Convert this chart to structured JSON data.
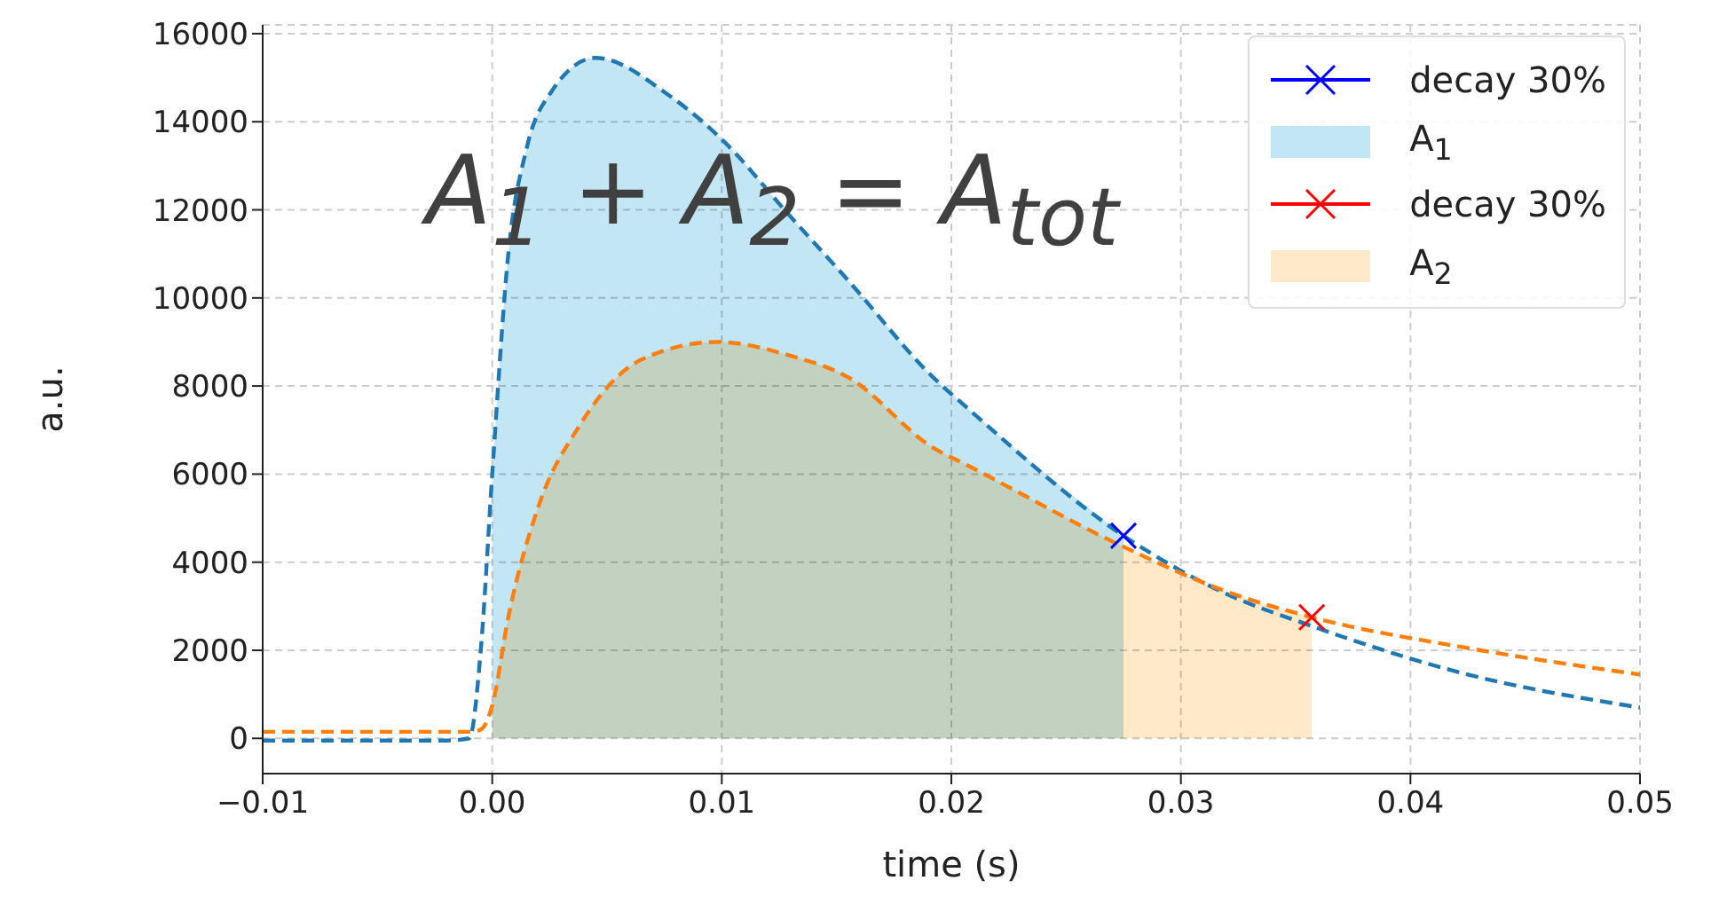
{
  "chart_data": {
    "type": "line",
    "xlabel": "time (s)",
    "ylabel": "a.u.",
    "annotations": [
      "A$_{1}$ + A$_{2}$ = A$_{tot}$"
    ],
    "xlim": [
      -0.01,
      0.05
    ],
    "xticks": [
      {
        "value": -0.01,
        "label": "−0.01"
      },
      {
        "value": 0,
        "label": "0.00"
      },
      0.01,
      0.02,
      0.03,
      0.04,
      0.05
    ],
    "ylim": [
      -800,
      16200
    ],
    "yticks": [
      0,
      2000,
      4000,
      6000,
      8000,
      10000,
      12000,
      14000,
      16000
    ],
    "grid": true,
    "legend": "top right",
    "series": [
      {
        "color": "#1f77b4",
        "line_style": "dashed",
        "marker": "none",
        "x": [
          -0.01,
          -0.002,
          -0.001,
          -0.0005,
          0,
          0.0007,
          0.0015,
          0.0026,
          0.0045,
          0.0077,
          0.01,
          0.0129,
          0.0155,
          0.0192,
          0.0207,
          0.0275,
          0.0319,
          0.0357,
          0.0425,
          0.05
        ],
        "values": [
          -50,
          -50,
          0,
          2000,
          6000,
          11000,
          13400,
          14700,
          15450,
          14600,
          13600,
          11900,
          10400,
          8200,
          7500,
          4600,
          3300,
          2550,
          1450,
          700
        ]
      },
      {
        "color": "#ff7f0e",
        "line_style": "dashed",
        "marker": "none",
        "x": [
          -0.01,
          -0.001,
          -0.0005,
          0,
          0.0007,
          0.002,
          0.0038,
          0.0065,
          0.0098,
          0.0129,
          0.0155,
          0.0192,
          0.0207,
          0.0275,
          0.0319,
          0.0357,
          0.0425,
          0.05
        ],
        "values": [
          150,
          150,
          200,
          750,
          2750,
          5250,
          7100,
          8600,
          9000,
          8700,
          8200,
          6600,
          6200,
          4350,
          3350,
          2750,
          2050,
          1450
        ]
      },
      {
        "type": "scatter",
        "name": "decay 30%",
        "color": "#0000ff",
        "marker": "cross",
        "x": [
          0.0275
        ],
        "values": [
          4600
        ]
      },
      {
        "type": "area",
        "name": "A$_{1}$",
        "color": "#c3e6f5",
        "x": [
          0,
          0.0007,
          0.0015,
          0.0026,
          0.0045,
          0.0077,
          0.01,
          0.0129,
          0.0155,
          0.0192,
          0.0207,
          0.0275
        ],
        "values": [
          6000,
          11000,
          13400,
          14700,
          15450,
          14600,
          13600,
          11900,
          10400,
          8200,
          7500,
          4600
        ]
      },
      {
        "type": "scatter",
        "name": "decay 30%",
        "color": "#ff0000",
        "marker": "cross",
        "x": [
          0.0357
        ],
        "values": [
          2750
        ]
      },
      {
        "type": "area",
        "name": "A$_{2}$",
        "color": "#ffe9c8",
        "x": [
          0,
          0.0007,
          0.002,
          0.0038,
          0.0065,
          0.0098,
          0.0129,
          0.0155,
          0.0192,
          0.0207,
          0.0275,
          0.0319,
          0.0357
        ],
        "values": [
          750,
          2750,
          5250,
          7100,
          8600,
          9000,
          8700,
          8200,
          6600,
          6200,
          4350,
          3350,
          2750
        ]
      }
    ]
  }
}
